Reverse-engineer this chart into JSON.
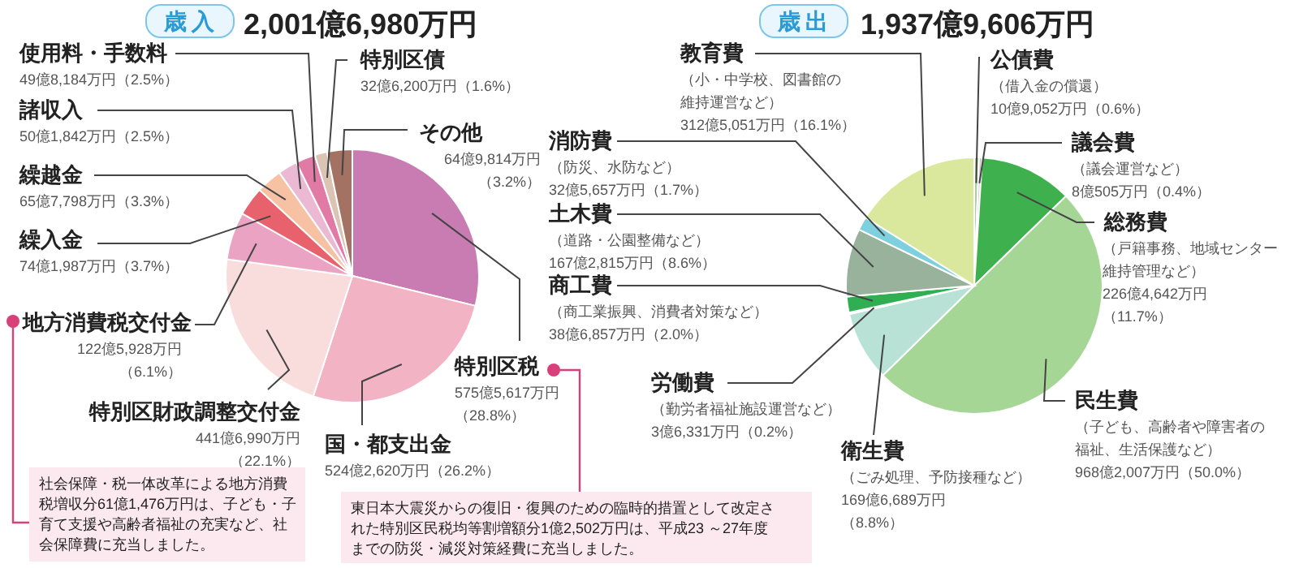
{
  "chart_data": [
    {
      "type": "pie",
      "title": "歳入",
      "subtitle": "2,001億6,980万円",
      "categories": [
        "特別区税",
        "国・都支出金",
        "特別区財政調整交付金",
        "地方消費税交付金",
        "繰入金",
        "繰越金",
        "諸収入",
        "使用料・手数料",
        "特別区債",
        "その他"
      ],
      "values": [
        28.8,
        26.2,
        22.1,
        6.1,
        3.7,
        3.3,
        2.5,
        2.5,
        1.6,
        3.2
      ],
      "colors": [
        "#c87cb2",
        "#f2b3c4",
        "#f9dcdc",
        "#eba3c4",
        "#e8626e",
        "#f7c2a4",
        "#ebb9d4",
        "#e27aa6",
        "#dcc4b4",
        "#a47262"
      ],
      "value_labels": [
        "575億5,617万円（28.8%）",
        "524億2,620万円（26.2%）",
        "441億6,990万円（22.1%）",
        "122億5,928万円（6.1%）",
        "74億1,987万円（3.7%）",
        "65億7,798万円（3.3%）",
        "50億1,842万円（2.5%）",
        "49億8,184万円（2.5%）",
        "32億6,200万円（1.6%）",
        "64億9,814万円（3.2%）"
      ],
      "annotations": [
        "社会保障・税一体改革による地方消費税増収分61億1,476万円は、子ども・子育て支援や高齢者福祉の充実など、社会保障費に充当しました。",
        "東日本大震災からの復旧・復興のための臨時的措置として改定された特別区民税均等割増額分1億2,502万円は、平成23 ～27年度までの防災・減災対策経費に充当しました。"
      ]
    },
    {
      "type": "pie",
      "title": "歳出",
      "subtitle": "1,937億9,606万円",
      "categories": [
        "公債費",
        "議会費",
        "総務費",
        "民生費",
        "衛生費",
        "労働費",
        "商工費",
        "土木費",
        "消防費",
        "教育費"
      ],
      "values": [
        0.6,
        0.4,
        11.7,
        50.0,
        8.8,
        0.2,
        2.0,
        8.6,
        1.7,
        16.1
      ],
      "colors": [
        "#a9cfa0",
        "#c4c4bc",
        "#3fb04e",
        "#a6d696",
        "#b9e2d6",
        "#8fbf8a",
        "#2fae52",
        "#98b29c",
        "#7fd0de",
        "#d9e89c"
      ],
      "value_labels": [
        "（借入金の償還）10億9,052万円（0.6%）",
        "（議会運営など）8億505万円（0.4%）",
        "（戸籍事務、地域センター維持管理など）226億4,642万円（11.7%）",
        "（子ども、高齢者や障害者の福祉、生活保護など）968億2,007万円（50.0%）",
        "（ごみ処理、予防接種など）169億6,689万円（8.8%）",
        "（勤労者福祉施設運営など）3億6,331万円（0.2%）",
        "（商工業振興、消費者対策など）38億6,857万円（2.0%）",
        "（道路・公園整備など）167億2,815万円（8.6%）",
        "（防災、水防など）32億5,657万円（1.7%）",
        "（小・中学校、図書館の維持運営など）312億5,051万円（16.1%）"
      ]
    }
  ]
}
